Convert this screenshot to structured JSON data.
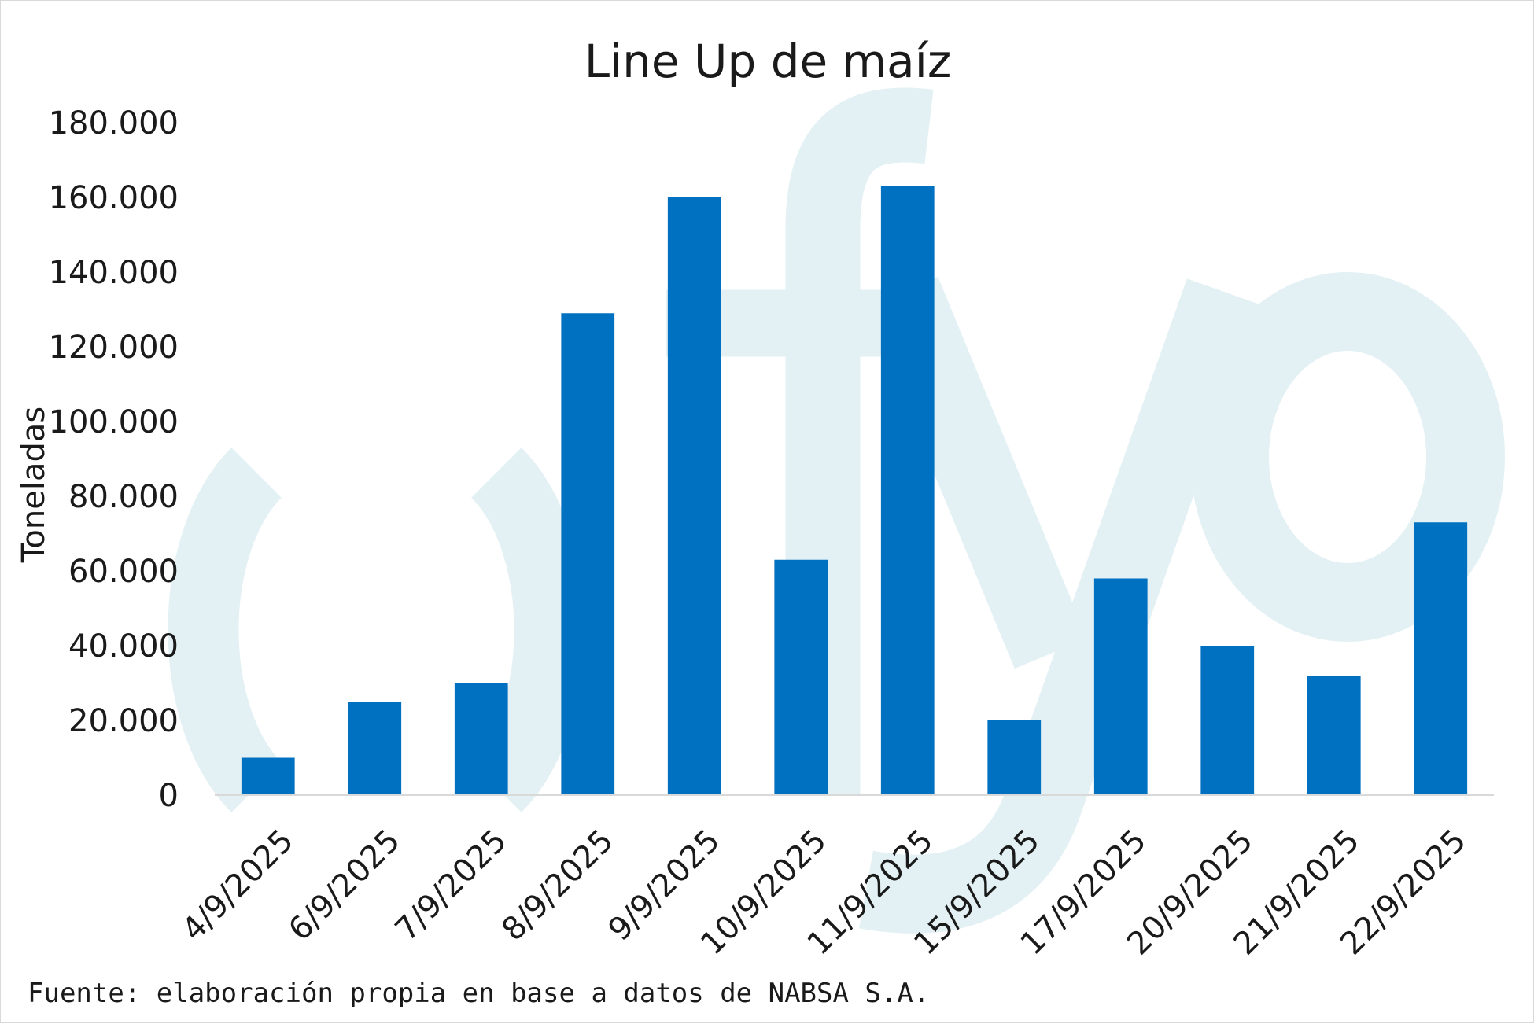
{
  "chart_data": {
    "type": "bar",
    "title": "Line Up de maíz",
    "xlabel": "",
    "ylabel": "Toneladas",
    "categories": [
      "4/9/2025",
      "6/9/2025",
      "7/9/2025",
      "8/9/2025",
      "9/9/2025",
      "10/9/2025",
      "11/9/2025",
      "15/9/2025",
      "17/9/2025",
      "20/9/2025",
      "21/9/2025",
      "22/9/2025"
    ],
    "values": [
      10000,
      25000,
      30000,
      129000,
      160000,
      63000,
      163000,
      20000,
      58000,
      40000,
      32000,
      73000
    ],
    "ylim": [
      0,
      180000
    ],
    "yticks": [
      0,
      20000,
      40000,
      60000,
      80000,
      100000,
      120000,
      140000,
      160000,
      180000
    ],
    "ytick_labels": [
      "0",
      "20.000",
      "40.000",
      "60.000",
      "80.000",
      "100.000",
      "120.000",
      "140.000",
      "160.000",
      "180.000"
    ],
    "grid": false,
    "legend": "none",
    "bar_color": "#0070c0",
    "x_tick_rotation": "-45deg"
  },
  "source_note": "Fuente: elaboración propia en base a datos de NABSA S.A.",
  "colors": {
    "watermark": "#e3f1f4",
    "axis": "#d9d9d9",
    "text": "#1a1a1a"
  }
}
